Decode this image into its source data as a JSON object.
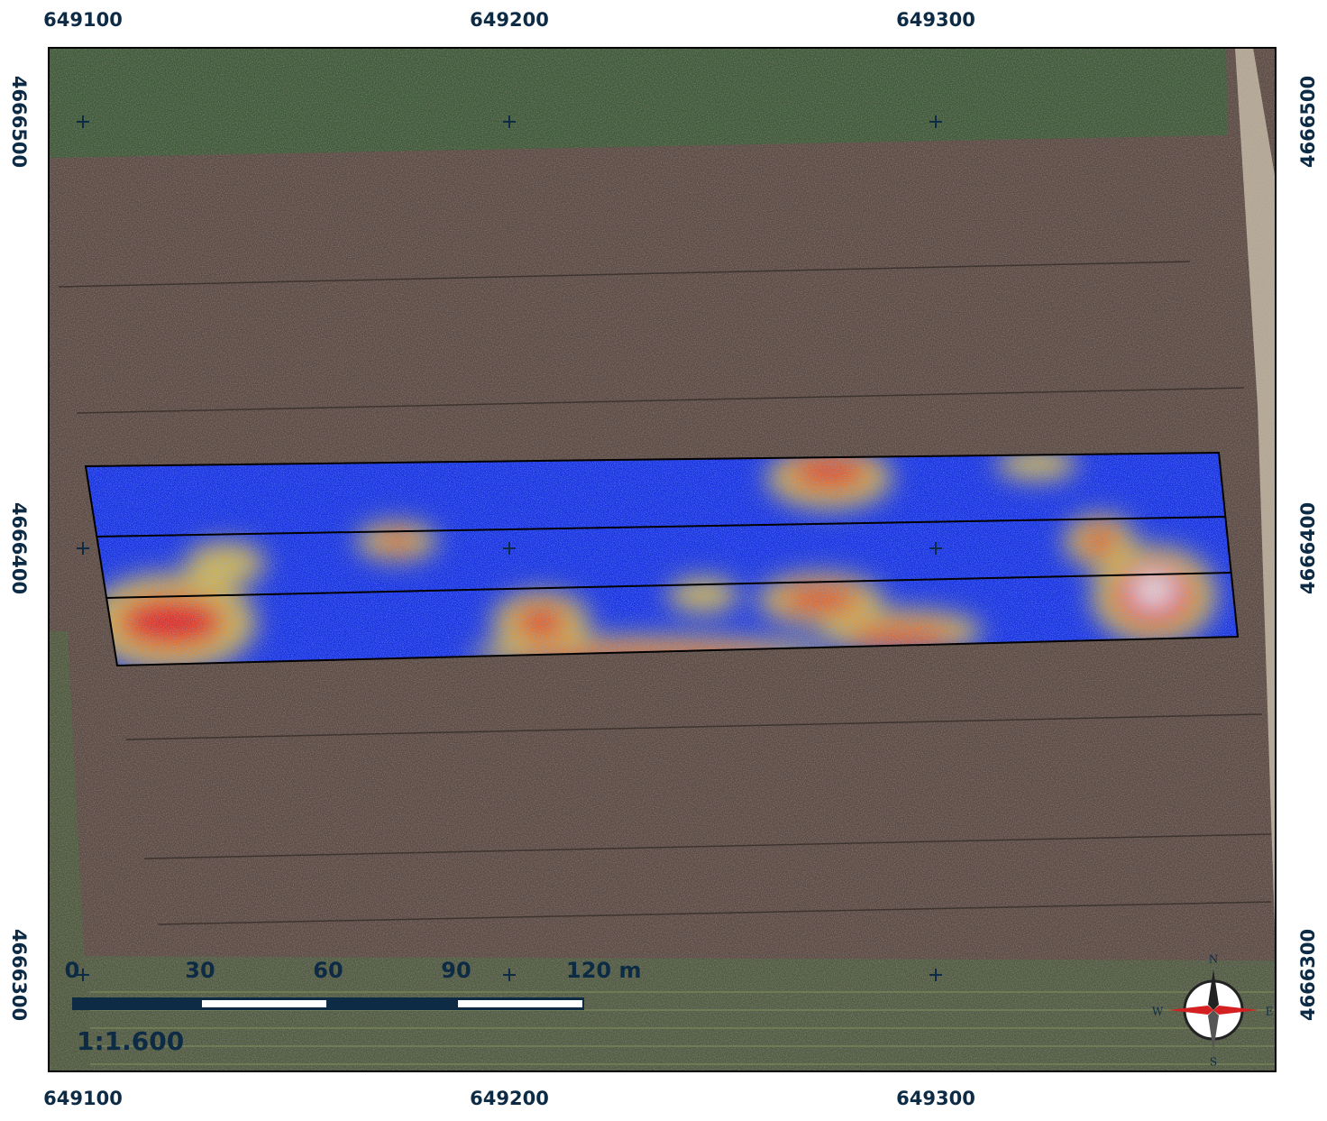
{
  "map": {
    "x_ticks": [
      649100,
      649200,
      649300
    ],
    "y_ticks": [
      4666500,
      4666400,
      4666300
    ],
    "scale_bar": {
      "labels": [
        "0",
        "30",
        "60",
        "90",
        "120 m"
      ],
      "ratio": "1:1.600"
    },
    "compass": {
      "north": "N",
      "south": "S",
      "west": "W",
      "east": "E"
    }
  }
}
